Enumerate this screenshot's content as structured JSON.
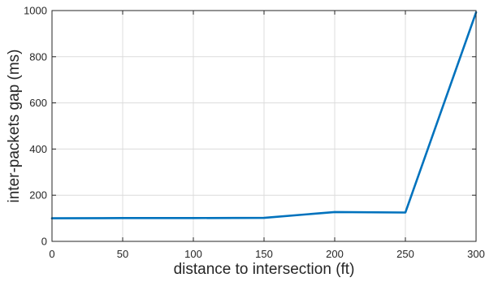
{
  "chart_data": {
    "type": "line",
    "title": "",
    "xlabel": "distance to intersection (ft)",
    "ylabel": "inter-packets gap (ms)",
    "xlim": [
      0,
      300
    ],
    "ylim": [
      0,
      1000
    ],
    "xticks": [
      0,
      50,
      100,
      150,
      200,
      250,
      300
    ],
    "yticks": [
      0,
      200,
      400,
      600,
      800,
      1000
    ],
    "grid": true,
    "legend": "none",
    "series": [
      {
        "color": "#0072BD",
        "x": [
          0,
          50,
          100,
          150,
          200,
          250,
          300
        ],
        "y": [
          100,
          101,
          101,
          102,
          127,
          125,
          992
        ]
      }
    ]
  }
}
